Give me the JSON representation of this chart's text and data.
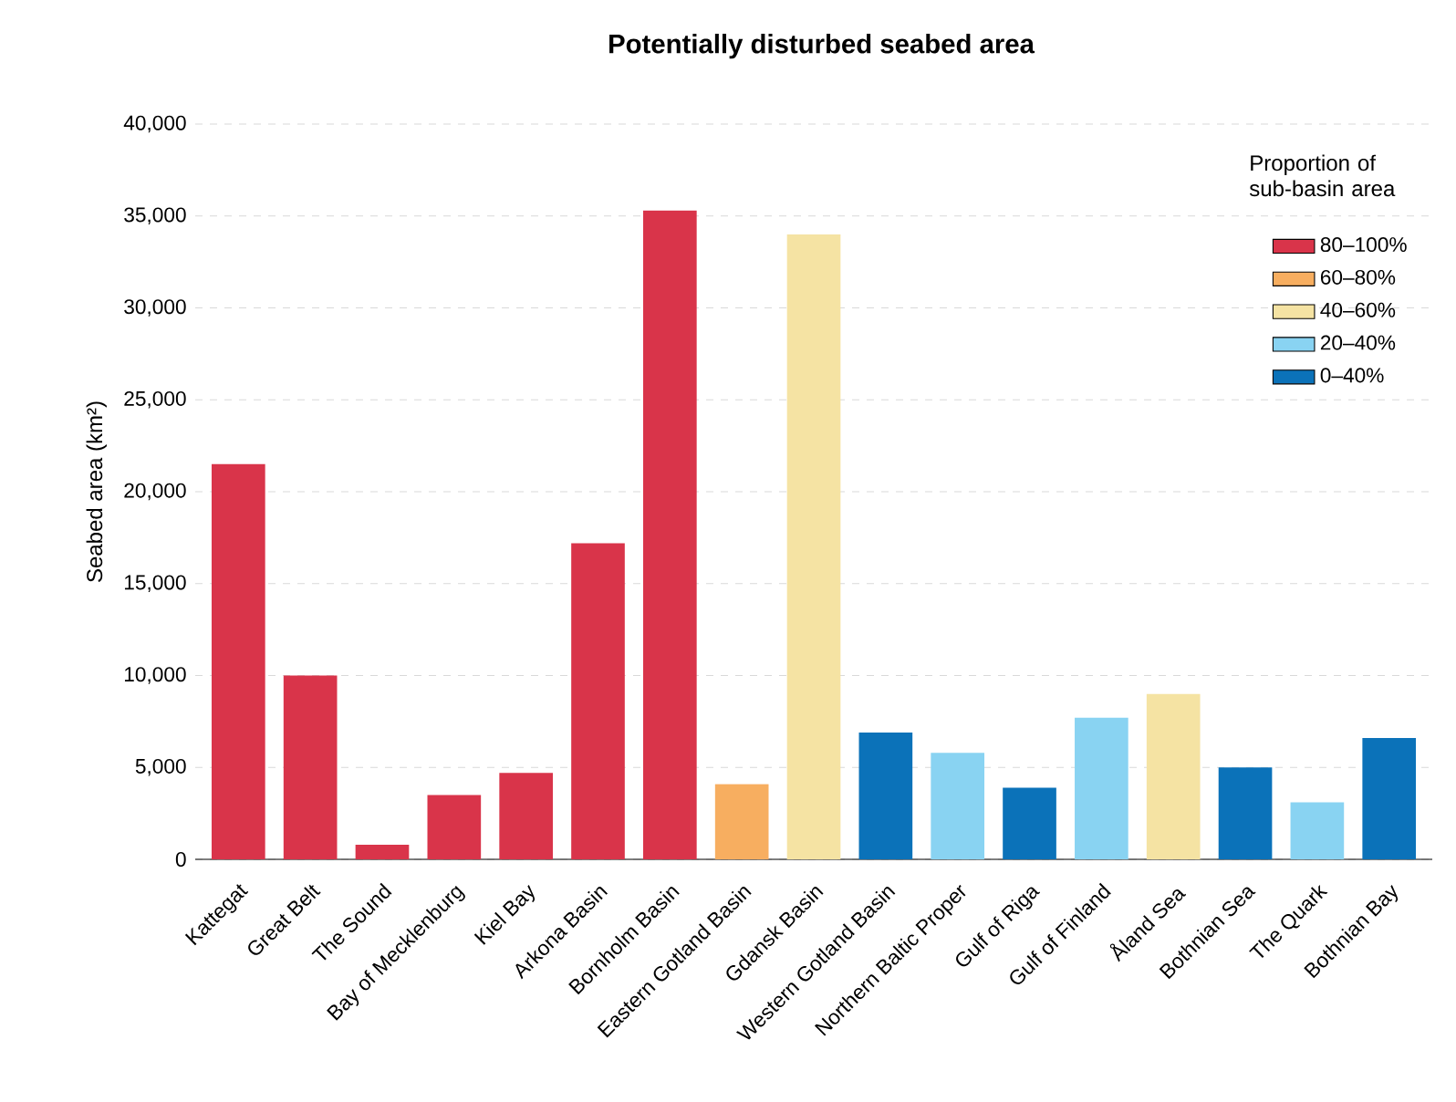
{
  "chart_data": {
    "type": "bar",
    "title": "Potentially disturbed seabed area",
    "ylabel": "Seabed area (km²)",
    "legend_title": "Proportion of sub-basin area",
    "categories": [
      "Kattegat",
      "Great Belt",
      "The Sound",
      "Bay of Mecklenburg",
      "Kiel Bay",
      "Arkona Basin",
      "Bornholm Basin",
      "Eastern Gotland Basin",
      "Gdansk Basin",
      "Western Gotland Basin",
      "Northern Baltic Proper",
      "Gulf of Riga",
      "Gulf of Finland",
      "Åland Sea",
      "Bothnian Sea",
      "The Quark",
      "Bothnian Bay"
    ],
    "series": [
      {
        "name": "80–100%",
        "color": "#d9344a",
        "values": [
          21500,
          10000,
          800,
          3500,
          4700,
          17200,
          35300,
          null,
          null,
          null,
          null,
          null,
          null,
          null,
          null,
          null,
          null
        ]
      },
      {
        "name": "60–80%",
        "color": "#f7ae60",
        "values": [
          null,
          null,
          null,
          null,
          null,
          null,
          null,
          4100,
          null,
          null,
          null,
          null,
          null,
          null,
          null,
          null,
          null
        ]
      },
      {
        "name": "40–60%",
        "color": "#f5e3a3",
        "values": [
          null,
          null,
          null,
          null,
          null,
          null,
          null,
          null,
          34000,
          null,
          null,
          null,
          null,
          9000,
          null,
          null,
          null
        ]
      },
      {
        "name": "20–40%",
        "color": "#89d3f2",
        "values": [
          null,
          null,
          null,
          null,
          null,
          null,
          null,
          null,
          null,
          null,
          5800,
          null,
          7700,
          null,
          null,
          3100,
          null
        ]
      },
      {
        "name": "0–40%",
        "color": "#0b72b9",
        "values": [
          null,
          null,
          null,
          null,
          null,
          null,
          null,
          null,
          null,
          6900,
          null,
          3900,
          null,
          null,
          5000,
          null,
          6600
        ]
      }
    ],
    "ylim": [
      0,
      40000
    ],
    "yticks": [
      0,
      {
        "value": 5000,
        "label": "5,000"
      },
      {
        "value": 10000,
        "label": "10,000"
      },
      {
        "value": 15000,
        "label": "15,000"
      },
      {
        "value": 20000,
        "label": "20,000"
      },
      {
        "value": 25000,
        "label": "25,000"
      },
      {
        "value": 30000,
        "label": "30,000"
      },
      {
        "value": 35000,
        "label": "35,000"
      },
      {
        "value": 40000,
        "label": "40,000"
      }
    ],
    "grid": "y",
    "legend": "top right"
  }
}
